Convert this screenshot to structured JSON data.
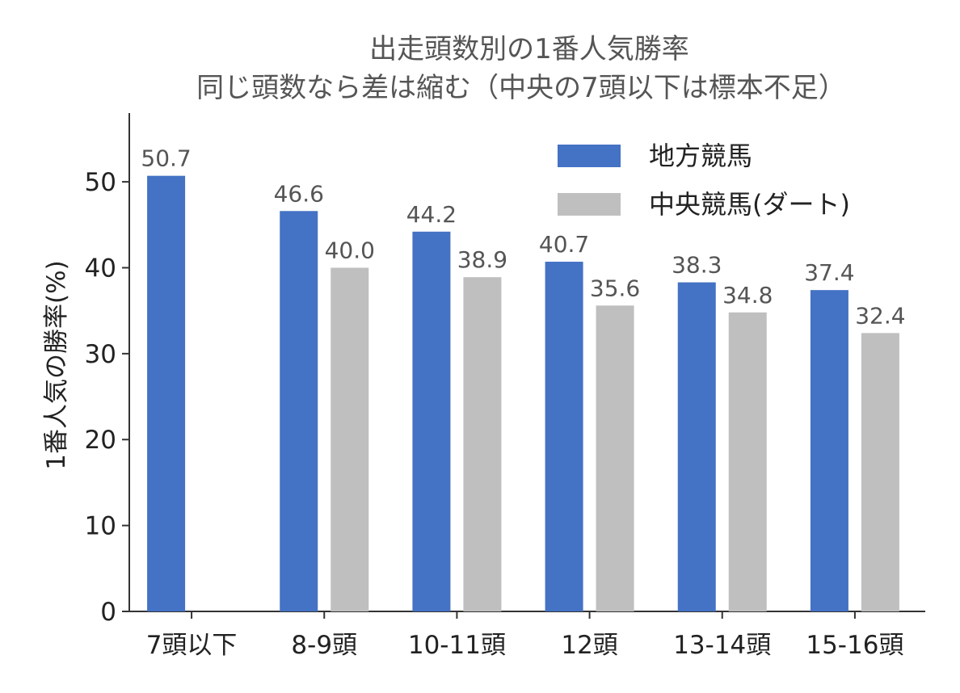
{
  "chart_data": {
    "type": "bar",
    "title": "出走頭数別の1番人気勝率",
    "subtitle": "同じ頭数なら差は縮む（中央の7頭以下は標本不足）",
    "xlabel": "",
    "ylabel": "1番人気の勝率(%)",
    "categories": [
      "7頭以下",
      "8-9頭",
      "10-11頭",
      "12頭",
      "13-14頭",
      "15-16頭"
    ],
    "series": [
      {
        "name": "地方競馬",
        "color": "#4472c4",
        "values": [
          50.7,
          46.6,
          44.2,
          40.7,
          38.3,
          37.4
        ]
      },
      {
        "name": "中央競馬(ダート)",
        "color": "#bfbfbf",
        "values": [
          null,
          40.0,
          38.9,
          35.6,
          34.8,
          32.4
        ]
      }
    ],
    "ylim": [
      0,
      58
    ],
    "yticks": [
      0,
      10,
      20,
      30,
      40,
      50
    ],
    "legend": "top-right",
    "grid": false
  }
}
